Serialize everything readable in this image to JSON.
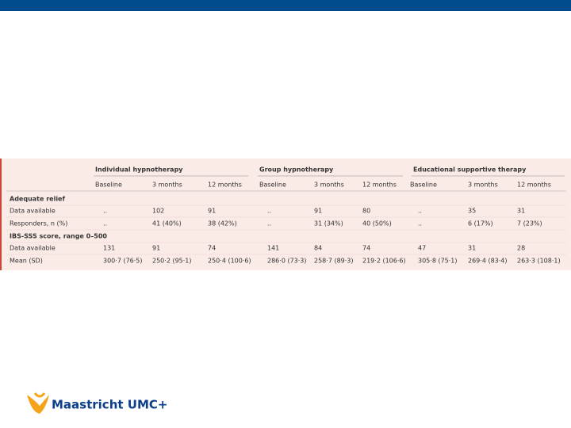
{
  "table": {
    "groups": [
      "Individual hypnotherapy",
      "Group hypnotherapy",
      "Educational supportive therapy"
    ],
    "subheaders": [
      "Baseline",
      "3 months",
      "12 months",
      "Baseline",
      "3 months",
      "12 months",
      "Baseline",
      "3 months",
      "12 months"
    ],
    "rows": [
      {
        "label": "Adequate relief"
      },
      {
        "label": "Data available",
        "cells": [
          "..",
          "102",
          "91",
          "..",
          "91",
          "80",
          "..",
          "35",
          "31"
        ]
      },
      {
        "label": "Responders, n (%)",
        "cells": [
          "..",
          "41 (40%)",
          "38 (42%)",
          "..",
          "31 (34%)",
          "40 (50%)",
          "..",
          "6 (17%)",
          "7 (23%)"
        ]
      },
      {
        "label": "IBS-SSS score, range 0–500"
      },
      {
        "label": "Data available",
        "cells": [
          "131",
          "91",
          "74",
          "141",
          "84",
          "74",
          "47",
          "31",
          "28"
        ]
      },
      {
        "label": "Mean (SD)",
        "cells": [
          "300·7 (76·5)",
          "250·2 (95·1)",
          "250·4 (100·6)",
          "286·0 (73·3)",
          "258·7 (89·3)",
          "219·2 (106·6)",
          "305·8 (75·1)",
          "269·4 (83·4)",
          "263·3 (108·1)"
        ]
      }
    ]
  },
  "logo": {
    "text": "Maastricht UMC+"
  }
}
